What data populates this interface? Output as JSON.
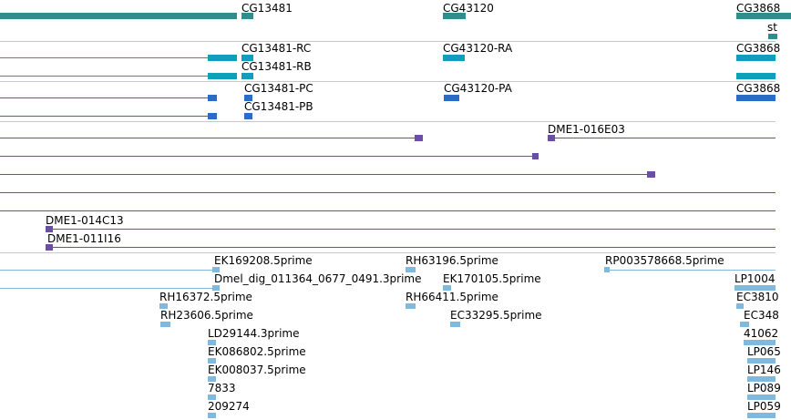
{
  "colors": {
    "gene": "#2f8d8f",
    "transcript": "#0f9fba",
    "protein": "#2a6cc9",
    "clone": "#6a4fa3",
    "est": "#7fb9dd",
    "divider": "#c8c8c8"
  },
  "tracks": {
    "genes": {
      "labels": [
        "CG13481",
        "CG43120",
        "CG3868",
        "st"
      ]
    },
    "transcripts": {
      "labels": [
        "CG13481-RC",
        "CG13481-RB",
        "CG43120-RA",
        "CG3868"
      ]
    },
    "proteins": {
      "labels": [
        "CG13481-PC",
        "CG13481-PB",
        "CG43120-PA",
        "CG3868"
      ]
    },
    "clones": {
      "labels": [
        "DME1-016E03",
        "DME1-014C13",
        "DME1-011I16"
      ]
    },
    "ests": {
      "labels": [
        "EK169208.5prime",
        "Dmel_dig_011364_0677_0491.3prime",
        "RH16372.5prime",
        "RH23606.5prime",
        "LD29144.3prime",
        "EK086802.5prime",
        "EK008037.5prime",
        "7833",
        "209274",
        "RH63196.5prime",
        "EK170105.5prime",
        "RH66411.5prime",
        "EC33295.5prime",
        "RP003578668.5prime",
        "LP1004",
        "EC3810",
        "EC348",
        "41062",
        "LP065",
        "LP146",
        "LP089",
        "LP059"
      ]
    }
  }
}
